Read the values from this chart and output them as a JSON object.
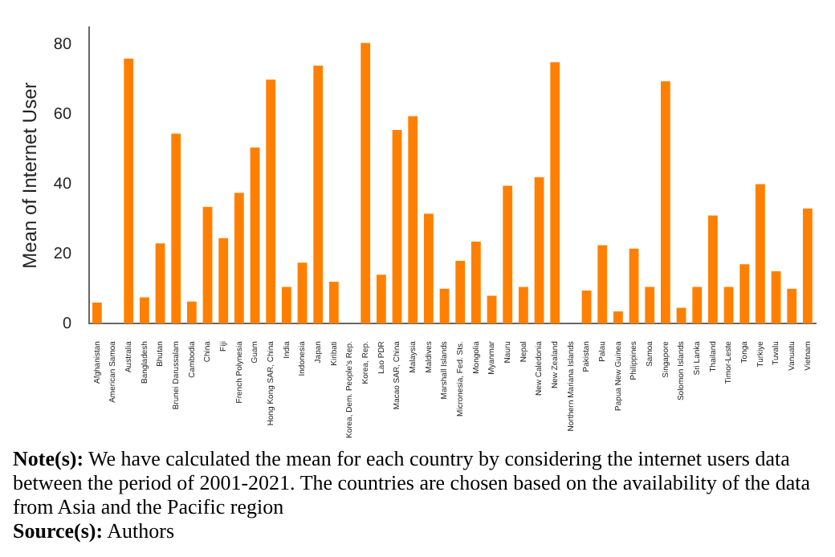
{
  "chart_data": {
    "type": "bar",
    "ylabel": "Mean of Internet User",
    "categories": [
      "Afghanistan",
      "American Samoa",
      "Australia",
      "Bangladesh",
      "Bhutan",
      "Brunei Darussalam",
      "Cambodia",
      "China",
      "Fiji",
      "French Polynesia",
      "Guam",
      "Hong Kong SAR, China",
      "India",
      "Indonesia",
      "Japan",
      "Kiribati",
      "Korea, Dem. People's Rep.",
      "Korea, Rep.",
      "Lao PDR",
      "Macao SAR, China",
      "Malaysia",
      "Maldives",
      "Marshall Islands",
      "Micronesia, Fed. Sts.",
      "Mongolia",
      "Myanmar",
      "Nauru",
      "Nepal",
      "New Caledonia",
      "New Zealand",
      "Northern Mariana Islands",
      "Pakistan",
      "Palau",
      "Papua New Guinea",
      "Philippines",
      "Samoa",
      "Singapore",
      "Solomon Islands",
      "Sri Lanka",
      "Thailand",
      "Timor-Leste",
      "Tonga",
      "Turkiye",
      "Tuvalu",
      "Vanuatu",
      "Vietnam"
    ],
    "values": [
      6,
      null,
      76,
      7.5,
      23,
      54.5,
      6.3,
      33.5,
      24.5,
      37.5,
      50.5,
      70,
      10.5,
      17.5,
      74,
      12,
      null,
      80.5,
      14,
      55.5,
      59.5,
      31.5,
      10,
      18,
      23.5,
      8,
      39.5,
      10.5,
      42,
      75,
      null,
      9.5,
      22.5,
      3.5,
      21.5,
      10.5,
      69.5,
      4.5,
      10.5,
      31,
      10.5,
      17,
      40,
      15,
      10,
      33
    ],
    "color": "#ff8000",
    "ylim": [
      0,
      85
    ],
    "yticks": [
      0,
      20,
      40,
      60,
      80
    ],
    "grid": false,
    "legend": false,
    "annotations": [
      "Note(s): We have calculated the mean for each country by considering the internet users data between the period of 2001-2021. The countries are chosen based on the availability of the data from Asia and the Pacific region",
      "Source(s): Authors"
    ]
  }
}
